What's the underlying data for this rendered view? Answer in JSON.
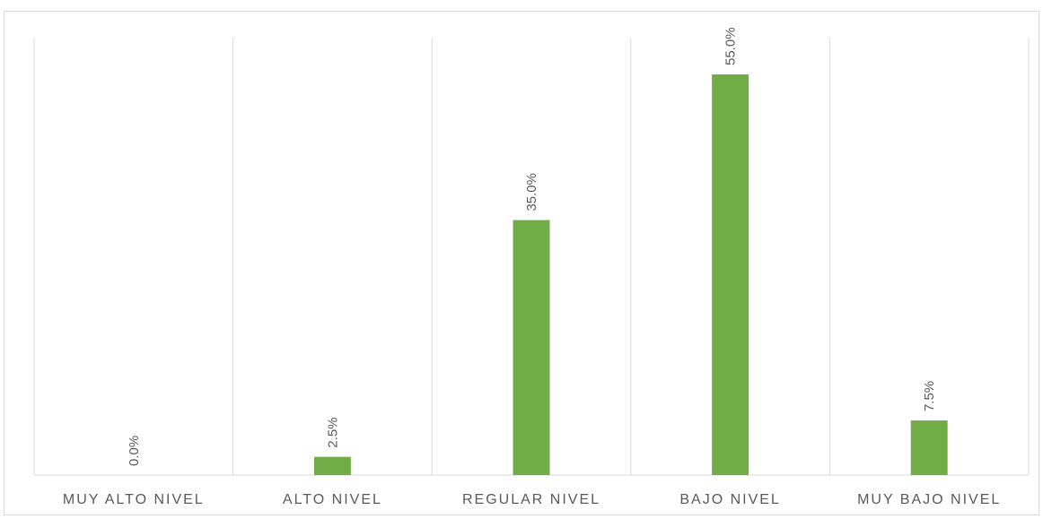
{
  "chart_data": {
    "type": "bar",
    "categories": [
      "MUY ALTO NIVEL",
      "ALTO NIVEL",
      "REGULAR NIVEL",
      "BAJO NIVEL",
      "MUY BAJO NIVEL"
    ],
    "values": [
      0.0,
      2.5,
      35.0,
      55.0,
      7.5
    ],
    "data_labels": [
      "0.0%",
      "2.5%",
      "35.0%",
      "55.0%",
      "7.5%"
    ],
    "title": "",
    "xlabel": "",
    "ylabel": "",
    "ylim": [
      0,
      60
    ],
    "grid": "vertical separators between categories",
    "legend": "none",
    "bar_color": "#70ad47"
  }
}
